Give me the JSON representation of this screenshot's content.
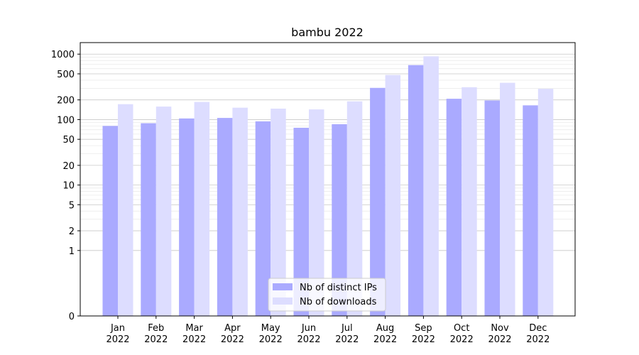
{
  "chart_data": {
    "type": "bar",
    "title": "bambu 2022",
    "xlabel": "",
    "ylabel": "",
    "categories": [
      {
        "month": "Jan",
        "year": "2022"
      },
      {
        "month": "Feb",
        "year": "2022"
      },
      {
        "month": "Mar",
        "year": "2022"
      },
      {
        "month": "Apr",
        "year": "2022"
      },
      {
        "month": "May",
        "year": "2022"
      },
      {
        "month": "Jun",
        "year": "2022"
      },
      {
        "month": "Jul",
        "year": "2022"
      },
      {
        "month": "Aug",
        "year": "2022"
      },
      {
        "month": "Sep",
        "year": "2022"
      },
      {
        "month": "Oct",
        "year": "2022"
      },
      {
        "month": "Nov",
        "year": "2022"
      },
      {
        "month": "Dec",
        "year": "2022"
      }
    ],
    "series": [
      {
        "name": "Nb of distinct IPs",
        "color": "#aaaaff",
        "values": [
          80,
          88,
          104,
          106,
          94,
          75,
          85,
          305,
          680,
          208,
          196,
          165
        ]
      },
      {
        "name": "Nb of downloads",
        "color": "#ddddff",
        "values": [
          172,
          158,
          186,
          152,
          147,
          143,
          190,
          480,
          925,
          312,
          365,
          295
        ]
      }
    ],
    "y_scale": "symlog",
    "yticks": [
      "0",
      "1",
      "2",
      "5",
      "10",
      "20",
      "50",
      "100",
      "200",
      "500",
      "1000"
    ],
    "ylim": [
      0,
      1500
    ],
    "grid": true,
    "legend_position": "lower-center"
  }
}
